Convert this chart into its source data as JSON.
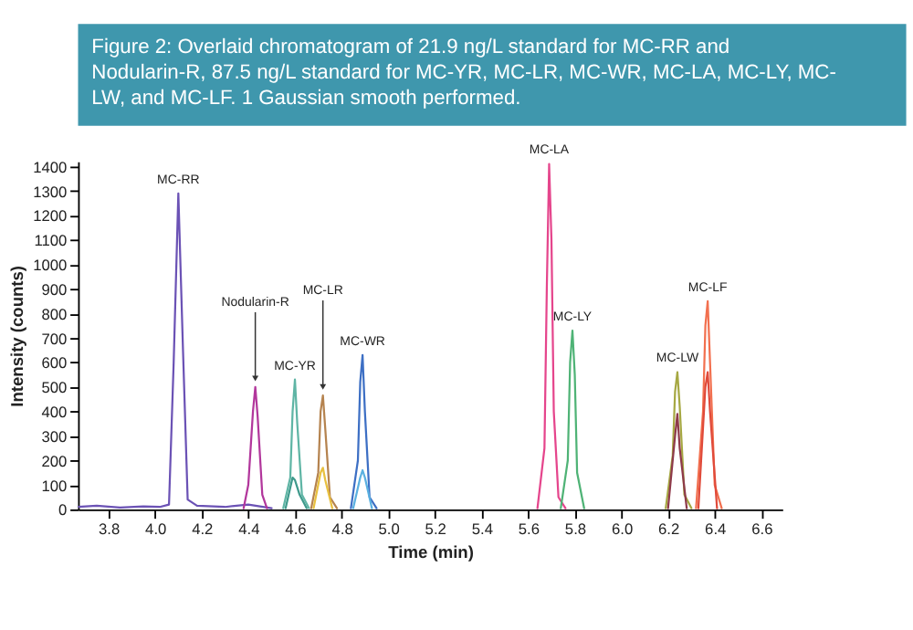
{
  "chart_data": {
    "type": "line",
    "title": "Figure 2: Overlaid chromatogram of 21.9 ng/L standard for MC-RR and Nodularin-R, 87.5 ng/L standard for MC-YR, MC-LR, MC-WR, MC-LA, MC-LY, MC-LW, and MC-LF. 1 Gaussian smooth performed.",
    "xlabel": "Time (min)",
    "ylabel": "Intensity (counts)",
    "xlim": [
      3.67,
      6.69
    ],
    "xticks": [
      3.8,
      {
        "value": 4,
        "label": "4.0"
      },
      4.2,
      4.4,
      4.6,
      4.8,
      {
        "value": 5,
        "label": "5.0"
      },
      5.2,
      5.4,
      5.6,
      5.8,
      {
        "value": 6,
        "label": "6.0"
      },
      6.2,
      6.4,
      6.6
    ],
    "ylim": [
      0,
      1420
    ],
    "yticks": [
      0,
      100,
      200,
      300,
      400,
      500,
      600,
      700,
      800,
      900,
      1000,
      1100,
      1200,
      1300,
      1400
    ],
    "grid": false,
    "legend": false,
    "marker": "none",
    "line_style": "solid",
    "series": [
      {
        "color": "#6b52b5",
        "x": [
          3.67,
          3.75,
          3.85,
          3.95,
          4.02,
          4.06,
          4.08,
          4.1,
          4.12,
          4.14,
          4.18,
          4.3,
          4.4,
          4.5
        ],
        "values": [
          10,
          15,
          8,
          12,
          10,
          20,
          600,
          1290,
          650,
          40,
          15,
          10,
          20,
          5
        ]
      },
      {
        "color": "#b2379c",
        "x": [
          4.38,
          4.4,
          4.42,
          4.43,
          4.44,
          4.46,
          4.48
        ],
        "values": [
          5,
          100,
          400,
          500,
          380,
          60,
          5
        ]
      },
      {
        "color": "#5fb5a5",
        "x": [
          4.55,
          4.58,
          4.59,
          4.6,
          4.61,
          4.63,
          4.66
        ],
        "values": [
          5,
          130,
          400,
          530,
          350,
          60,
          5
        ]
      },
      {
        "color": "#3f9a8c",
        "x": [
          4.56,
          4.59,
          4.6,
          4.62,
          4.65
        ],
        "values": [
          5,
          130,
          120,
          60,
          5
        ]
      },
      {
        "color": "#b5834f",
        "x": [
          4.67,
          4.7,
          4.71,
          4.72,
          4.73,
          4.75,
          4.78
        ],
        "values": [
          5,
          150,
          400,
          465,
          330,
          50,
          5
        ]
      },
      {
        "color": "#e8c040",
        "x": [
          4.68,
          4.71,
          4.72,
          4.73,
          4.76
        ],
        "values": [
          5,
          150,
          170,
          120,
          5
        ]
      },
      {
        "color": "#3d6fc4",
        "x": [
          4.84,
          4.87,
          4.88,
          4.89,
          4.9,
          4.92,
          4.95
        ],
        "values": [
          5,
          200,
          520,
          630,
          400,
          50,
          5
        ]
      },
      {
        "color": "#5ab0e0",
        "x": [
          4.85,
          4.88,
          4.89,
          4.9,
          4.93
        ],
        "values": [
          5,
          130,
          160,
          130,
          5
        ]
      },
      {
        "color": "#e5458c",
        "x": [
          5.64,
          5.67,
          5.68,
          5.69,
          5.7,
          5.71,
          5.73,
          5.76
        ],
        "values": [
          5,
          250,
          900,
          1410,
          1100,
          400,
          50,
          5
        ]
      },
      {
        "color": "#4fb376",
        "x": [
          5.74,
          5.77,
          5.78,
          5.79,
          5.8,
          5.81,
          5.84
        ],
        "values": [
          5,
          200,
          600,
          730,
          550,
          150,
          5
        ]
      },
      {
        "color": "#a6a843",
        "x": [
          6.19,
          6.22,
          6.23,
          6.24,
          6.25,
          6.27,
          6.3
        ],
        "values": [
          5,
          220,
          480,
          560,
          420,
          60,
          5
        ]
      },
      {
        "color": "#8e3a4a",
        "x": [
          6.2,
          6.23,
          6.24,
          6.25,
          6.28
        ],
        "values": [
          5,
          300,
          390,
          250,
          5
        ]
      },
      {
        "color": "#f2704f",
        "x": [
          6.32,
          6.35,
          6.36,
          6.37,
          6.38,
          6.4,
          6.43
        ],
        "values": [
          5,
          400,
          750,
          850,
          600,
          100,
          5
        ]
      },
      {
        "color": "#e04a3a",
        "x": [
          6.33,
          6.36,
          6.37,
          6.38,
          6.41
        ],
        "values": [
          5,
          500,
          560,
          400,
          5
        ]
      }
    ],
    "annotations": [
      {
        "text": "MC-RR",
        "x": 4.1,
        "y": 1290
      },
      {
        "text": "Nodularin-R",
        "x": 4.43,
        "y": 500
      },
      {
        "text": "MC-YR",
        "x": 4.6,
        "y": 530
      },
      {
        "text": "MC-LR",
        "x": 4.72,
        "y": 465
      },
      {
        "text": "MC-WR",
        "x": 4.89,
        "y": 630
      },
      {
        "text": "MC-LA",
        "x": 5.69,
        "y": 1410
      },
      {
        "text": "MC-LY",
        "x": 5.79,
        "y": 730
      },
      {
        "text": "MC-LW",
        "x": 6.24,
        "y": 560
      },
      {
        "text": "MC-LF",
        "x": 6.37,
        "y": 850
      }
    ]
  }
}
